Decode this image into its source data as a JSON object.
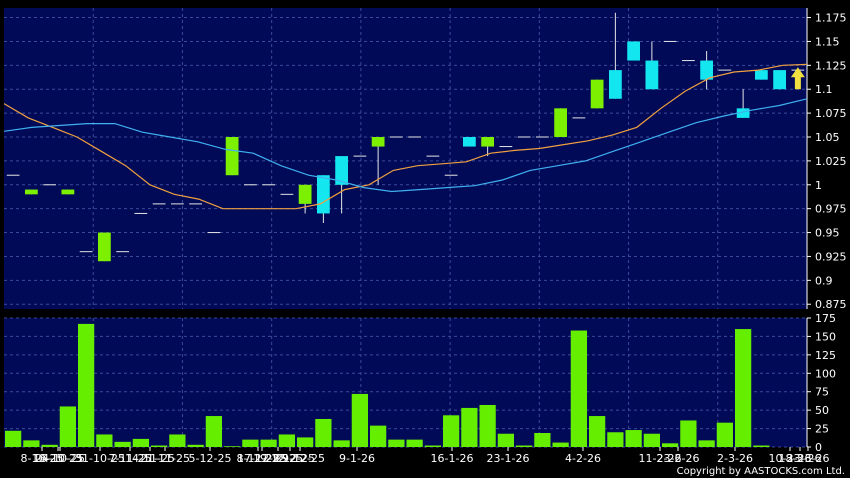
{
  "copyright": "Copyright by AASTOCKS.com Ltd.",
  "colors": {
    "background": "#000000",
    "panel": "#000a57",
    "grid": "#3a4a9a",
    "up_candle": "#7cf000",
    "down_candle": "#14e6f0",
    "ma_short": "#f0a040",
    "ma_long": "#40b0f0",
    "volume": "#66ee00",
    "arrow": "#f0e040",
    "axis_text": "#ffffff"
  },
  "chart_data": [
    {
      "type": "candlestick",
      "ylim": [
        0.87,
        1.185
      ],
      "yticks": [
        "1.175",
        "1.15",
        "1.125",
        "1.1",
        "1.075",
        "1.05",
        "1.025",
        "1",
        "0.975",
        "0.95",
        "0.925",
        "0.9",
        "0.875"
      ],
      "grid": true,
      "candles": [
        {
          "o": 1.01,
          "h": 1.01,
          "l": 1.01,
          "c": 1.01
        },
        {
          "o": 0.99,
          "h": 0.995,
          "l": 0.99,
          "c": 0.995
        },
        {
          "o": 1.0,
          "h": 1.0,
          "l": 1.0,
          "c": 1.0
        },
        {
          "o": 0.99,
          "h": 0.995,
          "l": 0.99,
          "c": 0.995
        },
        {
          "o": 0.93,
          "h": 0.93,
          "l": 0.93,
          "c": 0.93
        },
        {
          "o": 0.92,
          "h": 0.95,
          "l": 0.92,
          "c": 0.95
        },
        {
          "o": 0.93,
          "h": 0.93,
          "l": 0.93,
          "c": 0.93
        },
        {
          "o": 0.97,
          "h": 0.97,
          "l": 0.97,
          "c": 0.97
        },
        {
          "o": 0.98,
          "h": 0.98,
          "l": 0.98,
          "c": 0.98
        },
        {
          "o": 0.98,
          "h": 0.98,
          "l": 0.98,
          "c": 0.98
        },
        {
          "o": 0.98,
          "h": 0.98,
          "l": 0.98,
          "c": 0.98
        },
        {
          "o": 0.95,
          "h": 0.95,
          "l": 0.95,
          "c": 0.95
        },
        {
          "o": 1.01,
          "h": 1.05,
          "l": 1.01,
          "c": 1.05
        },
        {
          "o": 1.0,
          "h": 1.0,
          "l": 1.0,
          "c": 1.0
        },
        {
          "o": 1.0,
          "h": 1.0,
          "l": 1.0,
          "c": 1.0
        },
        {
          "o": 0.99,
          "h": 0.99,
          "l": 0.99,
          "c": 0.99
        },
        {
          "o": 0.98,
          "h": 1.0,
          "l": 0.97,
          "c": 1.0
        },
        {
          "o": 1.01,
          "h": 1.01,
          "l": 0.96,
          "c": 0.97
        },
        {
          "o": 1.03,
          "h": 1.03,
          "l": 0.97,
          "c": 1.0
        },
        {
          "o": 1.03,
          "h": 1.03,
          "l": 1.03,
          "c": 1.03
        },
        {
          "o": 1.04,
          "h": 1.05,
          "l": 1.0,
          "c": 1.05
        },
        {
          "o": 1.05,
          "h": 1.05,
          "l": 1.05,
          "c": 1.05
        },
        {
          "o": 1.05,
          "h": 1.05,
          "l": 1.05,
          "c": 1.05
        },
        {
          "o": 1.03,
          "h": 1.03,
          "l": 1.03,
          "c": 1.03
        },
        {
          "o": 1.01,
          "h": 1.01,
          "l": 1.01,
          "c": 1.01
        },
        {
          "o": 1.05,
          "h": 1.05,
          "l": 1.04,
          "c": 1.04
        },
        {
          "o": 1.04,
          "h": 1.05,
          "l": 1.03,
          "c": 1.05
        },
        {
          "o": 1.04,
          "h": 1.04,
          "l": 1.04,
          "c": 1.04
        },
        {
          "o": 1.05,
          "h": 1.05,
          "l": 1.05,
          "c": 1.05
        },
        {
          "o": 1.05,
          "h": 1.05,
          "l": 1.05,
          "c": 1.05
        },
        {
          "o": 1.05,
          "h": 1.08,
          "l": 1.05,
          "c": 1.08
        },
        {
          "o": 1.07,
          "h": 1.07,
          "l": 1.07,
          "c": 1.07
        },
        {
          "o": 1.08,
          "h": 1.11,
          "l": 1.08,
          "c": 1.11
        },
        {
          "o": 1.12,
          "h": 1.18,
          "l": 1.09,
          "c": 1.09
        },
        {
          "o": 1.15,
          "h": 1.15,
          "l": 1.13,
          "c": 1.13
        },
        {
          "o": 1.13,
          "h": 1.15,
          "l": 1.1,
          "c": 1.1
        },
        {
          "o": 1.15,
          "h": 1.15,
          "l": 1.15,
          "c": 1.15
        },
        {
          "o": 1.13,
          "h": 1.13,
          "l": 1.13,
          "c": 1.13
        },
        {
          "o": 1.13,
          "h": 1.14,
          "l": 1.1,
          "c": 1.11
        },
        {
          "o": 1.12,
          "h": 1.12,
          "l": 1.12,
          "c": 1.12
        },
        {
          "o": 1.08,
          "h": 1.1,
          "l": 1.07,
          "c": 1.07
        },
        {
          "o": 1.12,
          "h": 1.12,
          "l": 1.11,
          "c": 1.11
        },
        {
          "o": 1.12,
          "h": 1.12,
          "l": 1.1,
          "c": 1.1
        },
        {
          "o": 1.12,
          "h": 1.12,
          "l": 1.12,
          "c": 1.12
        }
      ],
      "ma_short": [
        1.085,
        1.07,
        1.06,
        1.05,
        1.035,
        1.02,
        1.0,
        0.99,
        0.985,
        0.975,
        0.975,
        0.975,
        0.975,
        0.98,
        0.995,
        1.0,
        1.015,
        1.02,
        1.022,
        1.024,
        1.033,
        1.036,
        1.038,
        1.042,
        1.046,
        1.052,
        1.06,
        1.08,
        1.098,
        1.112,
        1.118,
        1.12,
        1.125,
        1.126
      ],
      "ma_long": [
        1.056,
        1.06,
        1.062,
        1.064,
        1.064,
        1.055,
        1.05,
        1.045,
        1.037,
        1.033,
        1.02,
        1.01,
        1.005,
        0.997,
        0.993,
        0.995,
        0.997,
        0.999,
        1.005,
        1.015,
        1.02,
        1.025,
        1.035,
        1.045,
        1.055,
        1.065,
        1.072,
        1.078,
        1.083,
        1.09
      ],
      "marker": {
        "type": "arrow-up",
        "index": 43,
        "price": 1.1
      }
    },
    {
      "type": "bar",
      "ylim": [
        0,
        175
      ],
      "yticks": [
        "175",
        "150",
        "125",
        "100",
        "75",
        "50",
        "25",
        "0"
      ],
      "grid": true,
      "values": [
        22,
        9,
        3,
        55,
        167,
        17,
        7,
        11,
        2,
        17,
        3,
        42,
        1,
        10,
        10,
        17,
        13,
        38,
        9,
        72,
        29,
        10,
        10,
        2,
        43,
        53,
        57,
        18,
        2,
        19,
        6,
        158,
        42,
        20,
        23,
        18,
        5,
        36,
        9,
        33,
        160,
        2,
        0,
        0
      ],
      "xtick_labels": [
        "8-10-25",
        "16-10-25",
        "24-10-25",
        "31-10-25",
        "7-11-25",
        "14-11-25",
        "21-11-25",
        "5-12-25",
        "8-12-25",
        "17-12-25",
        "19-12-25",
        "22-12-25",
        "29-12-25",
        "9-1-26",
        "16-1-26",
        "23-1-26",
        "4-2-26",
        "11-2-26",
        "23-2-26",
        "2-3-26",
        "10-3-26",
        "18-3-26",
        "23-3-26"
      ],
      "xtick_positions": [
        42,
        58,
        60,
        100,
        130,
        150,
        165,
        210,
        258,
        262,
        278,
        290,
        300,
        357,
        452,
        508,
        583,
        660,
        678,
        735,
        790,
        800,
        808
      ]
    }
  ]
}
